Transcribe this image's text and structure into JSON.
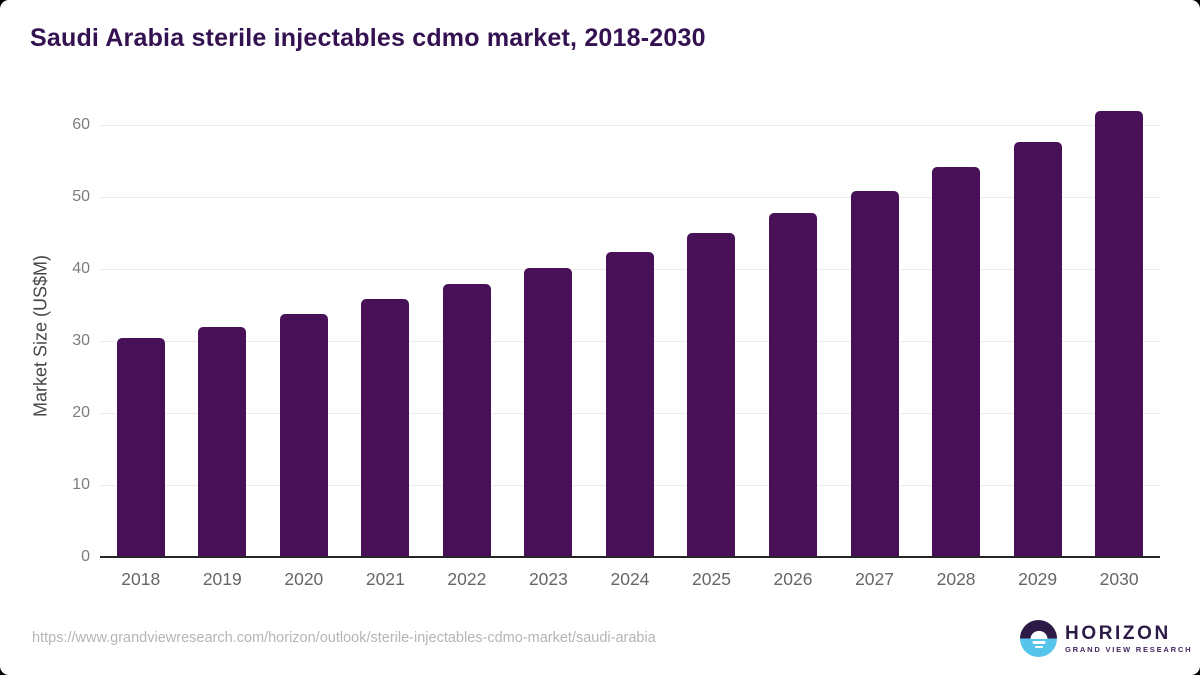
{
  "page": {
    "background_color": "#000000",
    "card_color": "#ffffff"
  },
  "header": {
    "title": "Saudi Arabia sterile injectables cdmo market, 2018-2030",
    "title_color": "#341150"
  },
  "chart_data": {
    "type": "bar",
    "title": "Saudi Arabia sterile injectables cdmo market, 2018-2030",
    "categories": [
      "2018",
      "2019",
      "2020",
      "2021",
      "2022",
      "2023",
      "2024",
      "2025",
      "2026",
      "2027",
      "2028",
      "2029",
      "2030"
    ],
    "values": [
      30.4,
      32.0,
      33.8,
      35.9,
      37.9,
      40.1,
      42.4,
      45.0,
      47.8,
      50.9,
      54.2,
      57.7,
      61.9
    ],
    "xlabel": "",
    "ylabel": "Market Size (US$M)",
    "ylim": [
      0,
      60
    ],
    "yticks": [
      0,
      10,
      20,
      30,
      40,
      50,
      60
    ],
    "grid": "horizontal-light",
    "legend": "none",
    "bar_color": "#481157"
  },
  "footer": {
    "source_url": "https://www.grandviewresearch.com/horizon/outlook/sterile-injectables-cdmo-market/saudi-arabia",
    "logo": {
      "icon": "horizon-sunrise-logo",
      "brand": "HORIZON",
      "subbrand": "GRAND VIEW RESEARCH",
      "brand_color": "#2d1a47",
      "accent_blue": "#57c4eb"
    }
  }
}
